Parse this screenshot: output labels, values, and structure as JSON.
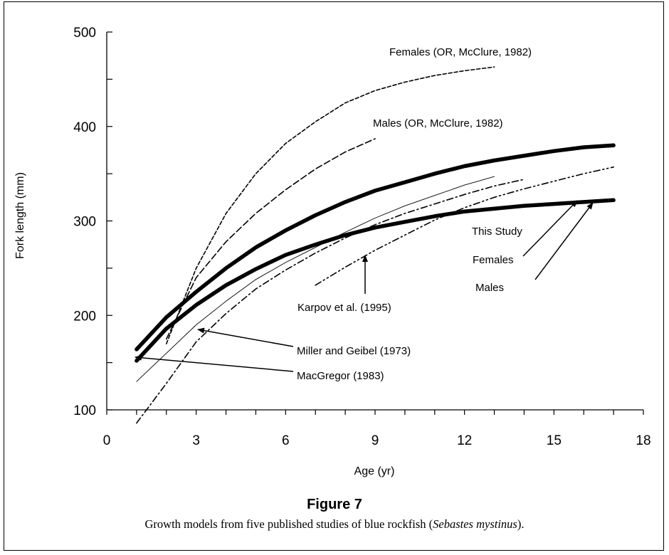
{
  "figure": {
    "title": "Figure 7",
    "caption_before": "Growth models from five published studies of blue rockfish (",
    "caption_species": "Sebastes mystinus",
    "caption_after": ")."
  },
  "chart_data": {
    "type": "line",
    "title": "",
    "xlabel": "Age (yr)",
    "ylabel": "Fork length (mm)",
    "xlim": [
      0,
      18
    ],
    "ylim": [
      100,
      500
    ],
    "x_ticks": [
      0,
      3,
      6,
      9,
      12,
      15,
      18
    ],
    "y_ticks": [
      100,
      200,
      300,
      400,
      500
    ],
    "grid": false,
    "series": [
      {
        "name": "Females (OR, McClure, 1982)",
        "style": "short-dash",
        "x": [
          2,
          3,
          4,
          5,
          6,
          7,
          8,
          9,
          10,
          11,
          12,
          13
        ],
        "y": [
          170,
          250,
          308,
          350,
          382,
          405,
          425,
          438,
          447,
          454,
          459,
          463
        ]
      },
      {
        "name": "Males (OR, McClure, 1982)",
        "style": "dash",
        "x": [
          2,
          3,
          4,
          5,
          6,
          7,
          8,
          9
        ],
        "y": [
          175,
          240,
          278,
          308,
          333,
          355,
          373,
          387
        ]
      },
      {
        "name": "This Study Females",
        "style": "thick-solid",
        "x": [
          1,
          2,
          3,
          4,
          5,
          6,
          7,
          8,
          9,
          10,
          11,
          12,
          13,
          14,
          15,
          16,
          17
        ],
        "y": [
          164,
          198,
          225,
          250,
          272,
          290,
          306,
          320,
          332,
          341,
          350,
          358,
          364,
          369,
          374,
          378,
          380
        ]
      },
      {
        "name": "This Study Males",
        "style": "thick-solid",
        "x": [
          1,
          2,
          3,
          4,
          5,
          6,
          7,
          8,
          9,
          10,
          11,
          12,
          13,
          14,
          15,
          16,
          17
        ],
        "y": [
          152,
          186,
          211,
          232,
          249,
          264,
          275,
          285,
          293,
          299,
          305,
          310,
          313,
          316,
          318,
          320,
          322
        ]
      },
      {
        "name": "Miller and Geibel (1973)",
        "style": "thin-solid",
        "x": [
          1,
          2,
          3,
          4,
          5,
          6,
          7,
          8,
          9,
          10,
          11,
          12,
          13
        ],
        "y": [
          130,
          160,
          190,
          215,
          238,
          256,
          272,
          288,
          303,
          316,
          327,
          338,
          347
        ]
      },
      {
        "name": "MacGregor (1983)",
        "style": "dash-dot",
        "x": [
          1,
          2,
          3,
          4,
          5,
          6,
          7,
          8,
          9,
          10,
          11,
          12,
          13,
          14
        ],
        "y": [
          86,
          128,
          172,
          202,
          228,
          248,
          266,
          282,
          296,
          308,
          318,
          328,
          337,
          344
        ]
      },
      {
        "name": "Karpov et al. (1995)",
        "style": "dash-dot-dot",
        "x": [
          7,
          8,
          9,
          10,
          11,
          12,
          13,
          14,
          15,
          16,
          17
        ],
        "y": [
          232,
          251,
          269,
          285,
          301,
          314,
          325,
          334,
          342,
          350,
          357
        ]
      }
    ],
    "annotations": [
      {
        "text": "Females (OR, McClure, 1982)"
      },
      {
        "text": "Males (OR, McClure, 1982)"
      },
      {
        "text": "This Study"
      },
      {
        "text": "Females"
      },
      {
        "text": "Males"
      },
      {
        "text": "Karpov et al. (1995)"
      },
      {
        "text": "Miller and Geibel (1973)"
      },
      {
        "text": "MacGregor (1983)"
      }
    ]
  }
}
